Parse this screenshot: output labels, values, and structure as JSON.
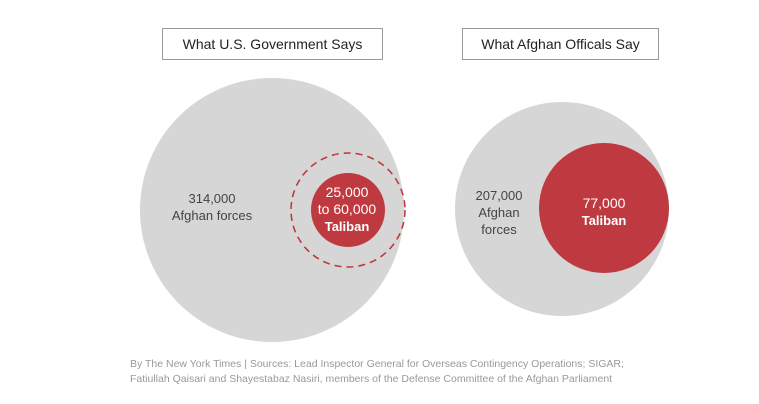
{
  "left_panel": {
    "title": "What U.S. Government Says",
    "forces_number": "314,000",
    "forces_label": "Afghan forces",
    "taliban_line1": "25,000",
    "taliban_line2": "to 60,000",
    "taliban_word": "Taliban"
  },
  "right_panel": {
    "title": "What Afghan Officals Say",
    "forces_number": "207,000",
    "forces_label_1": "Afghan",
    "forces_label_2": "forces",
    "taliban_number": "77,000",
    "taliban_word": "Taliban"
  },
  "colors": {
    "forces_circle": "#d6d6d6",
    "taliban_circle": "#bf3a40",
    "dashed_range": "#bf3a40"
  },
  "source": {
    "line1": "By The New York Times | Sources: Lead Inspector General for Overseas Contingency Operations; SIGAR;",
    "line2": "Fatiullah Qaisari and Shayestabaz Nasiri, members of the Defense Committee of the Afghan Parliament"
  }
}
